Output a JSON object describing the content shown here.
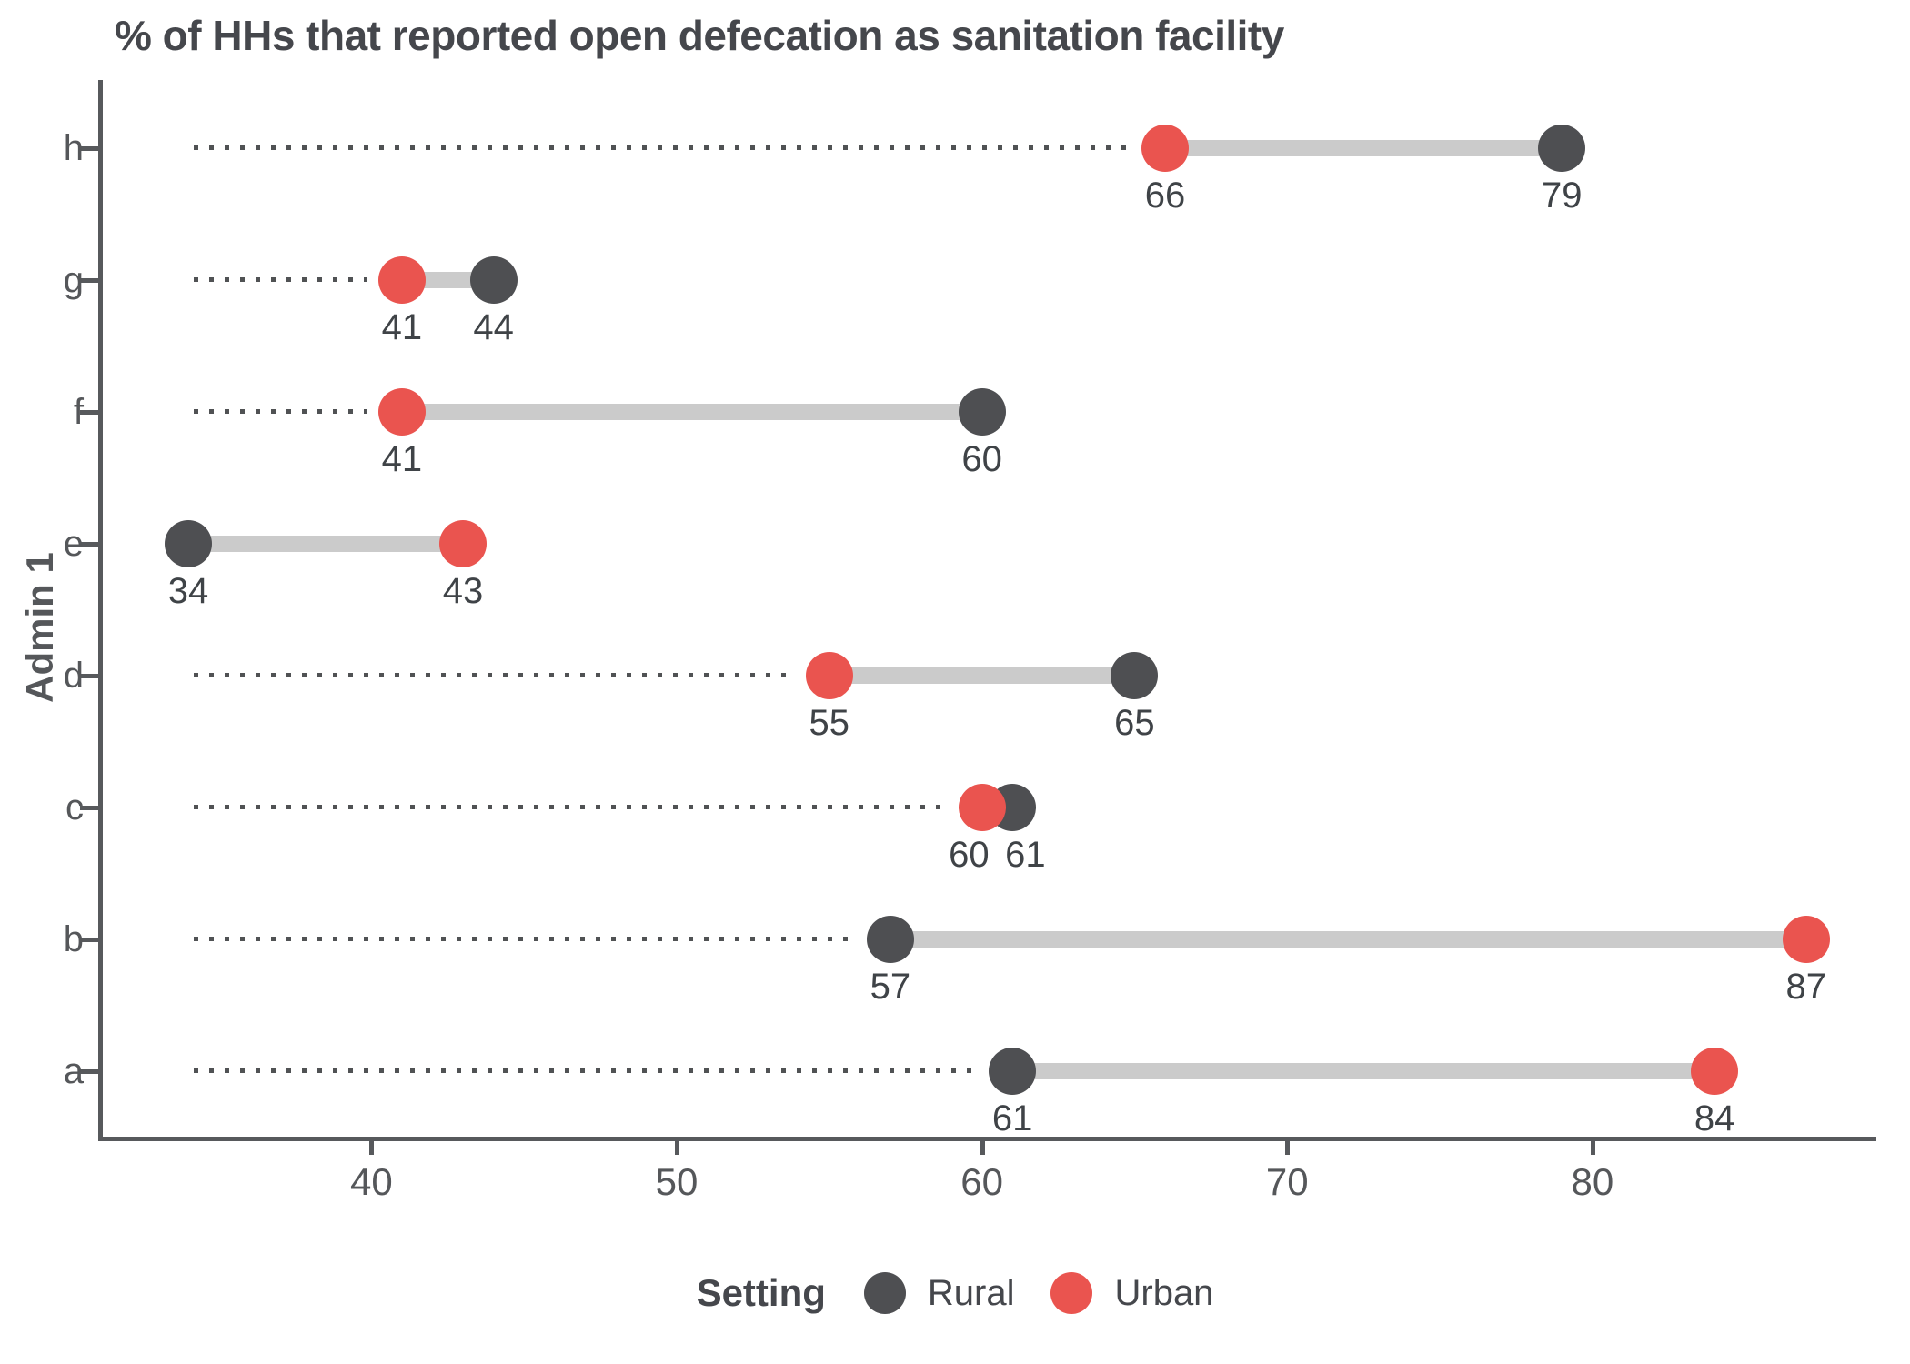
{
  "chart_data": {
    "type": "dumbbell",
    "title": "% of HHs that reported open defecation as sanitation facility",
    "xlabel": "",
    "ylabel": "Admin 1",
    "categories": [
      "h",
      "g",
      "f",
      "e",
      "d",
      "c",
      "b",
      "a"
    ],
    "series": [
      {
        "name": "Rural",
        "color": "#4e4f52",
        "values": [
          79,
          44,
          60,
          34,
          65,
          61,
          57,
          61
        ]
      },
      {
        "name": "Urban",
        "color": "#ea544f",
        "values": [
          66,
          41,
          41,
          43,
          55,
          60,
          87,
          84
        ]
      }
    ],
    "point_labels": {
      "h": {
        "Urban": 66,
        "Rural": 79
      },
      "g": {
        "Urban": 41,
        "Rural": 44
      },
      "f": {
        "Urban": 41,
        "Rural": 60
      },
      "e": {
        "Rural": 34,
        "Urban": 43
      },
      "d": {
        "Urban": 55,
        "Rural": 65
      },
      "c": {
        "Urban": 60,
        "Rural": 61
      },
      "b": {
        "Rural": 57,
        "Urban": 87
      },
      "a": {
        "Rural": 61,
        "Urban": 84
      }
    },
    "x_ticks": [
      40,
      50,
      60,
      70,
      80
    ],
    "xlim": [
      31.2,
      89.3
    ],
    "grid": "off",
    "leader_lines": "dotted from y-axis to leftmost point",
    "legend": {
      "title": "Setting",
      "position": "bottom",
      "entries": [
        "Rural",
        "Urban"
      ]
    },
    "styles": {
      "connector_color": "#cbcbcb",
      "leader_dot_color": "#505254",
      "axis_color": "#57595c"
    }
  }
}
